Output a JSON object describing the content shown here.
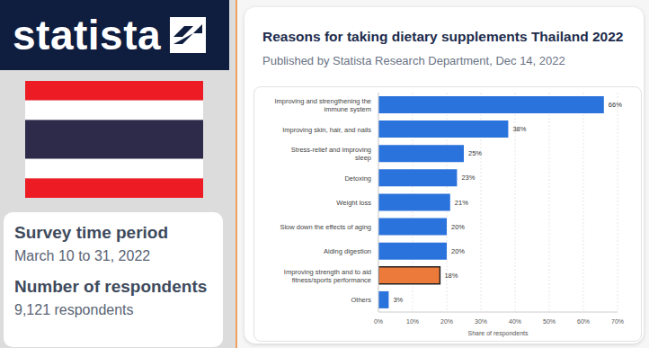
{
  "panel": {
    "brand": "statista",
    "survey_label": "Survey time period",
    "survey_value": "March 10 to 31, 2022",
    "respondents_label": "Number of respondents",
    "respondents_value": "9,121 respondents"
  },
  "chart_data": {
    "type": "bar",
    "orientation": "horizontal",
    "title": "Reasons for taking dietary supplements Thailand 2022",
    "subtitle": "Published by Statista Research Department, Dec 14, 2022",
    "x_label": "Share of respondents",
    "categories": [
      "Improving and strengthening the immune system",
      "Improving skin, hair, and nails",
      "Stress-relief and improving sleep",
      "Detoxing",
      "Weight loss",
      "Slow down the effects of aging",
      "Aiding digestion",
      "Improving strength and to aid fitness/sports performance",
      "Others"
    ],
    "values": [
      66,
      38,
      25,
      23,
      21,
      20,
      20,
      18,
      3
    ],
    "value_labels": [
      "66%",
      "38%",
      "25%",
      "23%",
      "21%",
      "20%",
      "20%",
      "18%",
      "3%"
    ],
    "colors": [
      "#2a72dc",
      "#2a72dc",
      "#2a72dc",
      "#2a72dc",
      "#2a72dc",
      "#2a72dc",
      "#2a72dc",
      "#ec7a3a",
      "#2a72dc"
    ],
    "xlim": [
      0,
      70
    ],
    "xticks": [
      {
        "value": 0,
        "label": "0%"
      },
      {
        "value": 10,
        "label": "10%"
      },
      {
        "value": 20,
        "label": "20%"
      },
      {
        "value": 30,
        "label": "30%"
      },
      {
        "value": 40,
        "label": "40%"
      },
      {
        "value": 50,
        "label": "50%"
      },
      {
        "value": 60,
        "label": "60%"
      },
      {
        "value": 70,
        "label": "70%"
      }
    ],
    "grid": true,
    "data_labels": true
  }
}
